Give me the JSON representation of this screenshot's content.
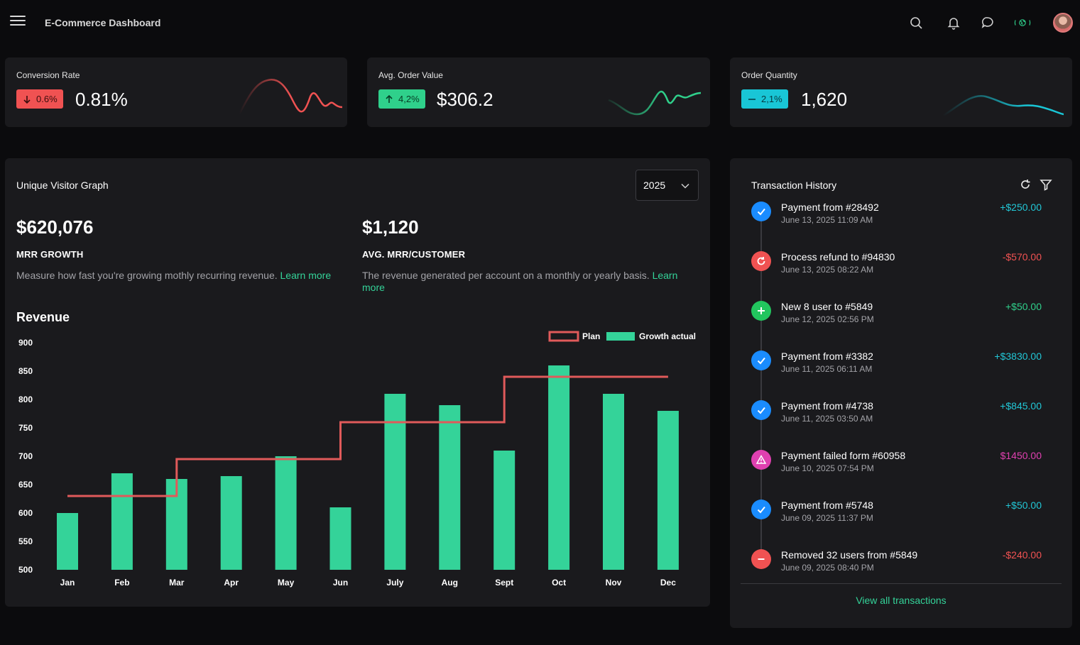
{
  "header": {
    "title": "E-Commerce Dashboard",
    "icons": [
      "menu-icon",
      "search-icon",
      "bell-icon",
      "chat-icon",
      "globe-icon",
      "avatar"
    ]
  },
  "stats": [
    {
      "title": "Conversion Rate",
      "badge": "0.6%",
      "value": "0.81%",
      "trend": "down",
      "color": "#f05252",
      "badge_text_color": "#3a0d0d"
    },
    {
      "title": "Avg. Order Value",
      "badge": "4,2%",
      "value": "$306.2",
      "trend": "up",
      "color": "#2fd08b",
      "badge_text_color": "#073d25"
    },
    {
      "title": "Order Quantity",
      "badge": "2,1%",
      "value": "1,620",
      "trend": "flat",
      "color": "#19c6d6",
      "badge_text_color": "#053a40"
    }
  ],
  "visitor": {
    "title": "Unique Visitor Graph",
    "year": "2025",
    "mrr_value": "$620,076",
    "mrr_label": "MRR GROWTH",
    "mrr_desc": "Measure how fast you're growing mothly recurring revenue.",
    "mrr_link": "Learn more",
    "avg_value": "$1,120",
    "avg_label": "AVG. MRR/CUSTOMER",
    "avg_desc": "The revenue generated per account on a monthly or yearly basis.",
    "avg_link": "Learn more",
    "revenue_title": "Revenue"
  },
  "chart_data": {
    "type": "bar",
    "title": "Revenue",
    "categories": [
      "Jan",
      "Feb",
      "Mar",
      "Apr",
      "May",
      "Jun",
      "July",
      "Aug",
      "Sept",
      "Oct",
      "Nov",
      "Dec"
    ],
    "series": [
      {
        "name": "Growth actual",
        "kind": "bar",
        "color": "#34d399",
        "values": [
          600,
          670,
          660,
          665,
          700,
          610,
          810,
          790,
          710,
          860,
          810,
          780
        ]
      },
      {
        "name": "Plan",
        "kind": "step-line",
        "color": "#e05a5a",
        "values": [
          630,
          630,
          695,
          695,
          695,
          760,
          760,
          760,
          840,
          840,
          840,
          840
        ]
      }
    ],
    "ylim": [
      500,
      900
    ],
    "yticks": [
      900,
      850,
      800,
      750,
      700,
      650,
      600,
      550,
      500
    ],
    "legend": "top-right",
    "grid": false
  },
  "transactions": {
    "title": "Transaction History",
    "items": [
      {
        "name": "Payment from #28492",
        "date": "June 13, 2025 11:09 AM",
        "amount": "+$250.00",
        "icon": "check-icon",
        "color": "#1a8cff",
        "amount_color": "#22c7d6"
      },
      {
        "name": "Process refund to #94830",
        "date": "June 13, 2025 08:22 AM",
        "amount": "-$570.00",
        "icon": "refresh-icon",
        "color": "#f05252",
        "amount_color": "#f05252"
      },
      {
        "name": "New 8 user to #5849",
        "date": "June 12, 2025 02:56 PM",
        "amount": "+$50.00",
        "icon": "plus-icon",
        "color": "#22c55e",
        "amount_color": "#2fd08b"
      },
      {
        "name": "Payment from #3382",
        "date": "June 11, 2025 06:11 AM",
        "amount": "+$3830.00",
        "icon": "check-icon",
        "color": "#1a8cff",
        "amount_color": "#22c7d6"
      },
      {
        "name": "Payment from #4738",
        "date": "June 11, 2025 03:50 AM",
        "amount": "+$845.00",
        "icon": "check-icon",
        "color": "#1a8cff",
        "amount_color": "#22c7d6"
      },
      {
        "name": "Payment failed form #60958",
        "date": "June 10, 2025 07:54 PM",
        "amount": "$1450.00",
        "icon": "warning-icon",
        "color": "#e040b0",
        "amount_color": "#e040b0"
      },
      {
        "name": "Payment from #5748",
        "date": "June 09, 2025 11:37 PM",
        "amount": "+$50.00",
        "icon": "check-icon",
        "color": "#1a8cff",
        "amount_color": "#22c7d6"
      },
      {
        "name": "Removed 32 users from #5849",
        "date": "June 09, 2025 08:40 PM",
        "amount": "-$240.00",
        "icon": "minus-icon",
        "color": "#f05252",
        "amount_color": "#f05252"
      }
    ],
    "view_all": "View all transactions"
  }
}
